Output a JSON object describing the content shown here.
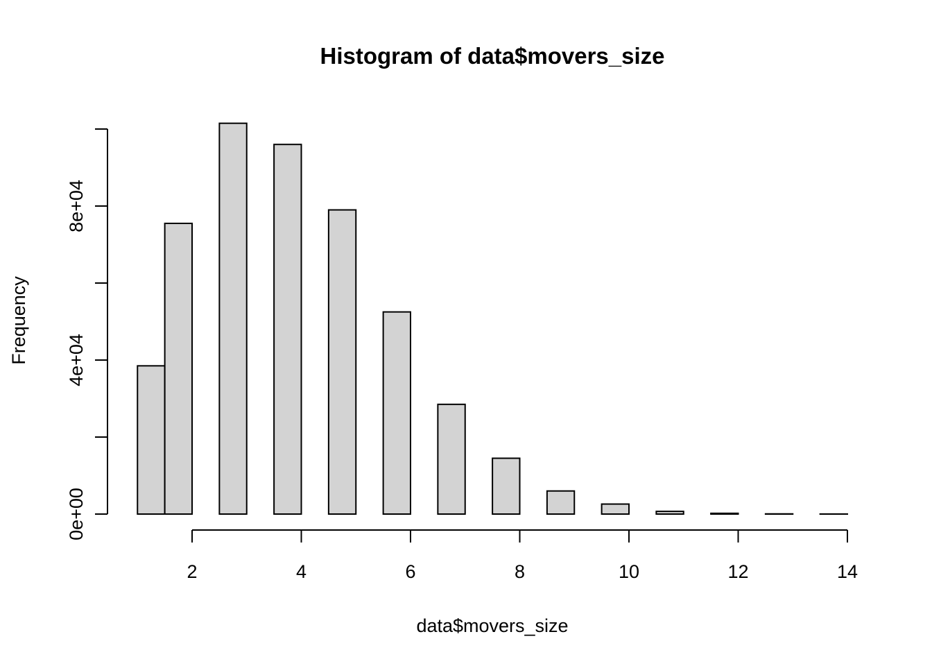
{
  "chart_data": {
    "type": "bar",
    "title": "Histogram of data$movers_size",
    "xlabel": "data$movers_size",
    "ylabel": "Frequency",
    "bin_width": 0.5,
    "bins": [
      {
        "start": 1.0,
        "end": 1.5,
        "count": 38500
      },
      {
        "start": 1.5,
        "end": 2.0,
        "count": 75500
      },
      {
        "start": 2.5,
        "end": 3.0,
        "count": 101500
      },
      {
        "start": 3.5,
        "end": 4.0,
        "count": 96000
      },
      {
        "start": 4.5,
        "end": 5.0,
        "count": 79000
      },
      {
        "start": 5.5,
        "end": 6.0,
        "count": 52500
      },
      {
        "start": 6.5,
        "end": 7.0,
        "count": 28500
      },
      {
        "start": 7.5,
        "end": 8.0,
        "count": 14500
      },
      {
        "start": 8.5,
        "end": 9.0,
        "count": 6000
      },
      {
        "start": 9.5,
        "end": 10.0,
        "count": 2600
      },
      {
        "start": 10.5,
        "end": 11.0,
        "count": 700
      },
      {
        "start": 11.5,
        "end": 12.0,
        "count": 200
      },
      {
        "start": 12.5,
        "end": 13.0,
        "count": 50
      },
      {
        "start": 13.5,
        "end": 14.0,
        "count": 20
      }
    ],
    "xlim": [
      1,
      14
    ],
    "ylim": [
      0,
      100000
    ],
    "x_ticks": [
      2,
      4,
      6,
      8,
      10,
      12,
      14
    ],
    "x_tick_labels": [
      "2",
      "4",
      "6",
      "8",
      "10",
      "12",
      "14"
    ],
    "y_ticks": [
      0,
      20000,
      40000,
      60000,
      80000,
      100000
    ],
    "y_tick_labels": [
      "0e+00",
      "",
      "4e+04",
      "",
      "8e+04",
      ""
    ],
    "grid": false,
    "colors": {
      "bar_fill": "#d3d3d3",
      "bar_stroke": "#000000"
    }
  }
}
